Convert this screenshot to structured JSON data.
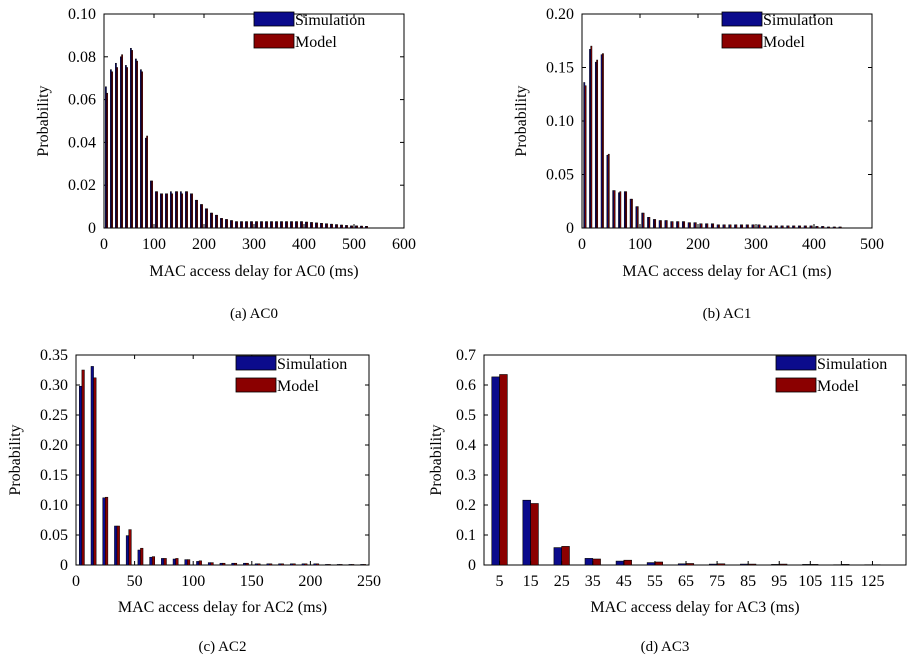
{
  "colors": {
    "simulation": "#0b0b8c",
    "model": "#8b0000",
    "axis": "#000000",
    "background": "#ffffff"
  },
  "legend": {
    "simulation": "Simulation",
    "model": "Model",
    "placement": "top-right"
  },
  "chart_data": [
    {
      "type": "bar",
      "caption": "(a) AC0",
      "xlabel": "MAC access delay for AC0 (ms)",
      "ylabel": "Probability",
      "xlim": [
        0,
        600
      ],
      "ylim": [
        0,
        0.1
      ],
      "grid": false,
      "xticks": [
        "0",
        "100",
        "200",
        "300",
        "400",
        "500",
        "600"
      ],
      "yticks": [
        "0",
        "0.02",
        "0.04",
        "0.06",
        "0.08",
        "0.10"
      ],
      "bin_width": 10,
      "x": [
        5,
        15,
        25,
        35,
        45,
        55,
        65,
        75,
        85,
        95,
        105,
        115,
        125,
        135,
        145,
        155,
        165,
        175,
        185,
        195,
        205,
        215,
        225,
        235,
        245,
        255,
        265,
        275,
        285,
        295,
        305,
        315,
        325,
        335,
        345,
        355,
        365,
        375,
        385,
        395,
        405,
        415,
        425,
        435,
        445,
        455,
        465,
        475,
        485,
        495,
        505,
        515,
        525
      ],
      "series": [
        {
          "name": "Simulation",
          "values": [
            0.066,
            0.074,
            0.077,
            0.08,
            0.076,
            0.084,
            0.079,
            0.074,
            0.042,
            0.022,
            0.017,
            0.016,
            0.016,
            0.017,
            0.017,
            0.017,
            0.017,
            0.016,
            0.013,
            0.011,
            0.009,
            0.007,
            0.006,
            0.0045,
            0.004,
            0.0035,
            0.003,
            0.003,
            0.003,
            0.003,
            0.003,
            0.003,
            0.003,
            0.003,
            0.003,
            0.003,
            0.003,
            0.003,
            0.003,
            0.003,
            0.0028,
            0.0026,
            0.0024,
            0.0022,
            0.002,
            0.0018,
            0.0016,
            0.0014,
            0.0012,
            0.001,
            0.001,
            0.0009,
            0.0008
          ]
        },
        {
          "name": "Model",
          "values": [
            0.063,
            0.073,
            0.075,
            0.081,
            0.075,
            0.083,
            0.078,
            0.073,
            0.043,
            0.022,
            0.017,
            0.016,
            0.016,
            0.016,
            0.017,
            0.016,
            0.017,
            0.016,
            0.013,
            0.011,
            0.009,
            0.007,
            0.006,
            0.0045,
            0.004,
            0.0035,
            0.003,
            0.003,
            0.003,
            0.003,
            0.003,
            0.003,
            0.003,
            0.003,
            0.003,
            0.003,
            0.003,
            0.003,
            0.003,
            0.003,
            0.0028,
            0.0026,
            0.0024,
            0.0022,
            0.002,
            0.0018,
            0.0016,
            0.0014,
            0.0012,
            0.001,
            0.001,
            0.0009,
            0.0008
          ]
        }
      ]
    },
    {
      "type": "bar",
      "caption": "(b) AC1",
      "xlabel": "MAC access delay for AC1 (ms)",
      "ylabel": "Probability",
      "xlim": [
        0,
        500
      ],
      "ylim": [
        0,
        0.2
      ],
      "grid": false,
      "xticks": [
        "0",
        "100",
        "200",
        "300",
        "400",
        "500"
      ],
      "yticks": [
        "0",
        "0.05",
        "0.10",
        "0.15",
        "0.20"
      ],
      "bin_width": 10,
      "x": [
        5,
        15,
        25,
        35,
        45,
        55,
        65,
        75,
        85,
        95,
        105,
        115,
        125,
        135,
        145,
        155,
        165,
        175,
        185,
        195,
        205,
        215,
        225,
        235,
        245,
        255,
        265,
        275,
        285,
        295,
        305,
        315,
        325,
        335,
        345,
        355,
        365,
        375,
        385,
        395,
        405,
        415,
        425,
        435,
        445
      ],
      "series": [
        {
          "name": "Simulation",
          "values": [
            0.136,
            0.167,
            0.155,
            0.162,
            0.068,
            0.035,
            0.033,
            0.034,
            0.027,
            0.02,
            0.014,
            0.01,
            0.008,
            0.007,
            0.007,
            0.006,
            0.006,
            0.006,
            0.005,
            0.005,
            0.004,
            0.004,
            0.004,
            0.003,
            0.003,
            0.003,
            0.003,
            0.003,
            0.003,
            0.003,
            0.003,
            0.002,
            0.002,
            0.002,
            0.002,
            0.002,
            0.002,
            0.002,
            0.002,
            0.002,
            0.0015,
            0.0015,
            0.001,
            0.001,
            0.001
          ]
        },
        {
          "name": "Model",
          "values": [
            0.133,
            0.17,
            0.157,
            0.163,
            0.069,
            0.035,
            0.034,
            0.034,
            0.027,
            0.02,
            0.014,
            0.01,
            0.008,
            0.007,
            0.007,
            0.006,
            0.006,
            0.006,
            0.005,
            0.005,
            0.004,
            0.004,
            0.004,
            0.003,
            0.003,
            0.003,
            0.003,
            0.003,
            0.003,
            0.003,
            0.003,
            0.002,
            0.002,
            0.002,
            0.002,
            0.002,
            0.002,
            0.002,
            0.002,
            0.002,
            0.0015,
            0.0015,
            0.001,
            0.001,
            0.001
          ]
        }
      ]
    },
    {
      "type": "bar",
      "caption": "(c) AC2",
      "xlabel": "MAC access delay for AC2 (ms)",
      "ylabel": "Probability",
      "xlim": [
        0,
        250
      ],
      "ylim": [
        0,
        0.35
      ],
      "grid": false,
      "xticks": [
        "0",
        "50",
        "100",
        "150",
        "200",
        "250"
      ],
      "yticks": [
        "0",
        "0.05",
        "0.10",
        "0.15",
        "0.20",
        "0.25",
        "0.30",
        "0.35"
      ],
      "bin_width": 10,
      "x": [
        5,
        15,
        25,
        35,
        45,
        55,
        65,
        75,
        85,
        95,
        105,
        115,
        125,
        135,
        145,
        155,
        165,
        175,
        185,
        195,
        205,
        215,
        225,
        235,
        245
      ],
      "series": [
        {
          "name": "Simulation",
          "values": [
            0.298,
            0.331,
            0.112,
            0.065,
            0.049,
            0.025,
            0.013,
            0.011,
            0.01,
            0.009,
            0.006,
            0.004,
            0.003,
            0.003,
            0.003,
            0.002,
            0.002,
            0.002,
            0.002,
            0.002,
            0.002,
            0.001,
            0.001,
            0.001,
            0.001
          ]
        },
        {
          "name": "Model",
          "values": [
            0.325,
            0.312,
            0.113,
            0.065,
            0.059,
            0.028,
            0.014,
            0.011,
            0.011,
            0.009,
            0.007,
            0.004,
            0.003,
            0.003,
            0.003,
            0.002,
            0.002,
            0.002,
            0.002,
            0.002,
            0.002,
            0.001,
            0.001,
            0.001,
            0.001
          ]
        }
      ]
    },
    {
      "type": "bar",
      "caption": "(d) AC3",
      "xlabel": "MAC access delay for AC3 (ms)",
      "ylabel": "Probability",
      "ylim": [
        0,
        0.7
      ],
      "grid": false,
      "categories": [
        "5",
        "15",
        "25",
        "35",
        "45",
        "55",
        "65",
        "75",
        "85",
        "95",
        "105",
        "115",
        "125"
      ],
      "yticks": [
        "0",
        "0.1",
        "0.2",
        "0.3",
        "0.4",
        "0.5",
        "0.6",
        "0.7"
      ],
      "series": [
        {
          "name": "Simulation",
          "values": [
            0.627,
            0.216,
            0.058,
            0.022,
            0.013,
            0.008,
            0.004,
            0.003,
            0.003,
            0.002,
            0.002,
            0.001,
            0.001
          ]
        },
        {
          "name": "Model",
          "values": [
            0.635,
            0.205,
            0.062,
            0.02,
            0.016,
            0.01,
            0.005,
            0.004,
            0.003,
            0.003,
            0.002,
            0.002,
            0.001
          ]
        }
      ]
    }
  ]
}
